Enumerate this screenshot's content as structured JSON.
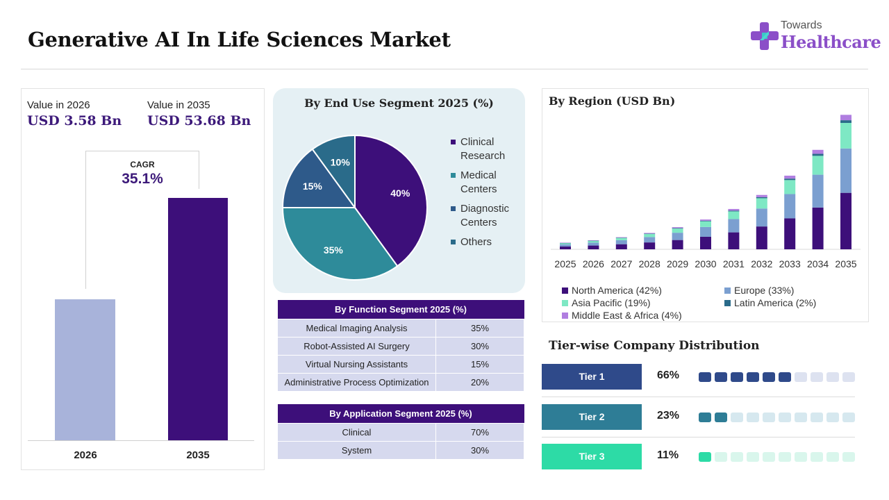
{
  "title": "Generative AI In Life Sciences Market",
  "logo": {
    "line1": "Towards",
    "line2": "Healthcare",
    "icon": "medical-cross-icon"
  },
  "value_panel": {
    "label_2026": "Value in 2026",
    "value_2026": "USD 3.58 Bn",
    "label_2035": "Value in 2035",
    "value_2035": "USD 53.68 Bn",
    "cagr_label": "CAGR",
    "cagr_value": "35.1%",
    "years": [
      "2026",
      "2035"
    ]
  },
  "function_table": {
    "title": "By Function Segment 2025 (%)",
    "rows": [
      [
        "Medical Imaging Analysis",
        "35%"
      ],
      [
        "Robot-Assisted AI Surgery",
        "30%"
      ],
      [
        "Virtual Nursing Assistants",
        "15%"
      ],
      [
        "Administrative Process Optimization",
        "20%"
      ]
    ]
  },
  "application_table": {
    "title": "By Application Segment 2025 (%)",
    "rows": [
      [
        "Clinical",
        "70%"
      ],
      [
        "System",
        "30%"
      ]
    ]
  },
  "tiers": {
    "title": "Tier-wise Company Distribution",
    "items": [
      {
        "label": "Tier 1",
        "pct": "66%",
        "filled": 6,
        "total": 10,
        "color": "#2f4a8a",
        "light": "#dde2f0"
      },
      {
        "label": "Tier 2",
        "pct": "23%",
        "filled": 2,
        "total": 10,
        "color": "#2e7d96",
        "light": "#d6e8ef"
      },
      {
        "label": "Tier 3",
        "pct": "11%",
        "filled": 1,
        "total": 10,
        "color": "#2ddba6",
        "light": "#d9f6ec"
      }
    ]
  },
  "chart_data": [
    {
      "type": "bar",
      "categories": [
        "2026",
        "2035"
      ],
      "values": [
        3.58,
        53.68
      ],
      "colors": [
        "#a8b3da",
        "#3d0f7a"
      ]
    },
    {
      "type": "pie",
      "title": "By End Use Segment 2025 (%)",
      "labels": [
        "Clinical Research",
        "Medical Centers",
        "Diagnostic Centers",
        "Others"
      ],
      "legend_lines": [
        [
          "Clinical",
          "Research"
        ],
        [
          "Medical",
          "Centers"
        ],
        [
          "Diagnostic",
          "Centers"
        ],
        [
          "Others"
        ]
      ],
      "values": [
        40,
        35,
        15,
        10
      ],
      "display": [
        "40%",
        "35%",
        "15%",
        "10%"
      ],
      "colors": [
        "#3d0f7a",
        "#2e8b9a",
        "#2e5a8a",
        "#2a6b8a"
      ],
      "legend_placement": "right"
    },
    {
      "type": "bar",
      "stacked": true,
      "title": "By Region (USD Bn)",
      "categories": [
        "2025",
        "2026",
        "2027",
        "2028",
        "2029",
        "2030",
        "2031",
        "2032",
        "2033",
        "2034",
        "2035"
      ],
      "totals": [
        2.65,
        3.58,
        4.84,
        6.53,
        8.82,
        11.9,
        16.1,
        21.7,
        29.4,
        39.7,
        53.68
      ],
      "series": [
        {
          "name": "North America (42%)",
          "share": 0.42,
          "color": "#3d0f7a"
        },
        {
          "name": "Europe (33%)",
          "share": 0.33,
          "color": "#7b9fd0"
        },
        {
          "name": "Asia Pacific (19%)",
          "share": 0.19,
          "color": "#7ee8c4"
        },
        {
          "name": "Latin America (2%)",
          "share": 0.02,
          "color": "#2a6b8a"
        },
        {
          "name": "Middle East & Africa (4%)",
          "share": 0.04,
          "color": "#b07ee0"
        }
      ],
      "ylim": [
        0,
        56
      ],
      "grid": false,
      "legend_placement": "bottom"
    }
  ]
}
